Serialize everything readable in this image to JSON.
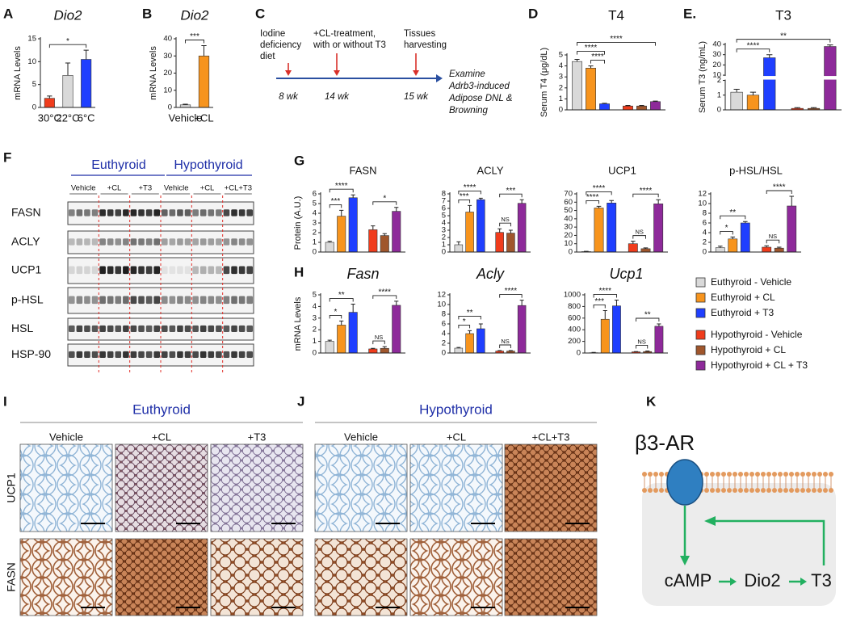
{
  "panel_labels": [
    "A",
    "B",
    "C",
    "D",
    "E.",
    "F",
    "G",
    "H",
    "I",
    "J",
    "K"
  ],
  "chart_data": [
    {
      "type": "bar",
      "title": "Dio2",
      "title_italic": true,
      "ylabel": "mRNA Levels",
      "categories": [
        "30°C",
        "22°C",
        "6°C"
      ],
      "values": [
        2,
        7,
        10.5
      ],
      "errors": [
        0.5,
        2.7,
        2
      ],
      "colors": [
        "#f03c1c",
        "#d9d9d9",
        "#1f3fff"
      ],
      "ylim": [
        0,
        15
      ],
      "yticks": [
        0,
        5,
        10,
        15
      ],
      "brackets": [
        {
          "label": "*",
          "bars": [
            0,
            2
          ]
        }
      ]
    },
    {
      "type": "bar",
      "title": "Dio2",
      "title_italic": true,
      "ylabel": "mRNA Levels",
      "categories": [
        "Vehicle",
        "+CL"
      ],
      "values": [
        1.5,
        30
      ],
      "errors": [
        0.4,
        6
      ],
      "colors": [
        "#d9d9d9",
        "#f7941d"
      ],
      "ylim": [
        0,
        40
      ],
      "yticks": [
        0,
        10,
        20,
        30,
        40
      ],
      "brackets": [
        {
          "label": "***",
          "bars": [
            0,
            1
          ]
        }
      ]
    },
    {
      "type": "bar",
      "title": "T4",
      "title_italic": false,
      "ylabel": "Serum T4 (μg/dL)",
      "values": [
        4.4,
        3.8,
        0.55,
        0.35,
        0.35,
        0.75
      ],
      "errors": [
        0.2,
        0.2,
        0.05,
        0.05,
        0.05,
        0.05
      ],
      "ylim": [
        0,
        5
      ],
      "yticks": [
        0,
        1,
        2,
        3,
        4,
        5
      ],
      "brackets": [
        {
          "label": "****",
          "bars": [
            1,
            2
          ]
        },
        {
          "label": "****",
          "bars": [
            0,
            2
          ]
        },
        {
          "label": "****",
          "bars": [
            0,
            5
          ]
        }
      ]
    },
    {
      "type": "bar",
      "title": "T3",
      "title_italic": false,
      "ylabel": "Serum T3 (ng/mL)",
      "values": [
        1.2,
        1.0,
        27,
        0.1,
        0.1,
        38
      ],
      "errors": [
        0.2,
        0.2,
        3,
        0.05,
        0.05,
        1.5
      ],
      "ylim": [
        0,
        40
      ],
      "ybreak": [
        2,
        10
      ],
      "yticks": [
        0,
        1,
        2,
        10,
        20,
        30,
        40
      ],
      "brackets": [
        {
          "label": "****",
          "bars": [
            0,
            2
          ]
        },
        {
          "label": "**",
          "bars": [
            0,
            5
          ]
        }
      ]
    },
    {
      "type": "bar",
      "title": "FASN",
      "title_italic": false,
      "ylabel": "Protein (A.U.)",
      "values": [
        1.0,
        3.7,
        5.6,
        2.3,
        1.7,
        4.2
      ],
      "errors": [
        0.1,
        0.6,
        0.3,
        0.4,
        0.2,
        0.4
      ],
      "ylim": [
        0,
        6
      ],
      "yticks": [
        0,
        1,
        2,
        3,
        4,
        5,
        6
      ],
      "brackets": [
        {
          "label": "***",
          "bars": [
            0,
            1
          ]
        },
        {
          "label": "****",
          "bars": [
            0,
            2
          ]
        },
        {
          "label": "*",
          "bars": [
            3,
            5
          ]
        }
      ]
    },
    {
      "type": "bar",
      "title": "ACLY",
      "title_italic": false,
      "values": [
        1.0,
        5.5,
        7.2,
        2.7,
        2.6,
        6.7
      ],
      "errors": [
        0.4,
        0.9,
        0.2,
        0.5,
        0.4,
        0.5
      ],
      "ylim": [
        0,
        8
      ],
      "yticks": [
        0,
        1,
        2,
        3,
        4,
        5,
        6,
        7,
        8
      ],
      "brackets": [
        {
          "label": "***",
          "bars": [
            0,
            1
          ]
        },
        {
          "label": "****",
          "bars": [
            0,
            2
          ]
        },
        {
          "label": "NS",
          "bars": [
            3,
            4
          ]
        },
        {
          "label": "***",
          "bars": [
            3,
            5
          ]
        }
      ]
    },
    {
      "type": "bar",
      "title": "UCP1",
      "title_italic": false,
      "values": [
        0.5,
        53,
        59,
        10,
        4,
        58
      ],
      "errors": [
        0.3,
        2,
        3,
        3,
        1,
        5
      ],
      "ylim": [
        0,
        70
      ],
      "yticks": [
        0,
        10,
        20,
        30,
        40,
        50,
        60,
        70
      ],
      "brackets": [
        {
          "label": "****",
          "bars": [
            0,
            1
          ]
        },
        {
          "label": "****",
          "bars": [
            0,
            2
          ]
        },
        {
          "label": "NS",
          "bars": [
            3,
            4
          ]
        },
        {
          "label": "****",
          "bars": [
            3,
            5
          ]
        }
      ]
    },
    {
      "type": "bar",
      "title": "p-HSL/HSL",
      "title_italic": false,
      "values": [
        0.9,
        2.7,
        6.0,
        1.0,
        0.8,
        9.5
      ],
      "errors": [
        0.3,
        0.4,
        0.3,
        0.3,
        0.2,
        2
      ],
      "ylim": [
        0,
        12
      ],
      "yticks": [
        0,
        2,
        4,
        6,
        8,
        10,
        12
      ],
      "brackets": [
        {
          "label": "*",
          "bars": [
            0,
            1
          ]
        },
        {
          "label": "**",
          "bars": [
            0,
            2
          ]
        },
        {
          "label": "NS",
          "bars": [
            3,
            4
          ]
        },
        {
          "label": "****",
          "bars": [
            3,
            5
          ]
        }
      ]
    },
    {
      "type": "bar",
      "title": "Fasn",
      "title_italic": true,
      "ylabel": "mRNA Levels",
      "values": [
        1.0,
        2.4,
        3.5,
        0.35,
        0.4,
        4.1
      ],
      "errors": [
        0.1,
        0.35,
        0.7,
        0.05,
        0.15,
        0.35
      ],
      "ylim": [
        0,
        5
      ],
      "yticks": [
        0,
        1,
        2,
        3,
        4,
        5
      ],
      "brackets": [
        {
          "label": "*",
          "bars": [
            0,
            1
          ]
        },
        {
          "label": "**",
          "bars": [
            0,
            2
          ]
        },
        {
          "label": "NS",
          "bars": [
            3,
            4
          ]
        },
        {
          "label": "****",
          "bars": [
            3,
            5
          ]
        }
      ]
    },
    {
      "type": "bar",
      "title": "Acly",
      "title_italic": true,
      "values": [
        1.0,
        4.0,
        5.0,
        0.4,
        0.4,
        9.8
      ],
      "errors": [
        0.15,
        0.6,
        1.0,
        0.1,
        0.1,
        1.1
      ],
      "ylim": [
        0,
        12
      ],
      "yticks": [
        0,
        2,
        4,
        6,
        8,
        10,
        12
      ],
      "brackets": [
        {
          "label": "*",
          "bars": [
            0,
            1
          ]
        },
        {
          "label": "**",
          "bars": [
            0,
            2
          ]
        },
        {
          "label": "NS",
          "bars": [
            3,
            4
          ]
        },
        {
          "label": "****",
          "bars": [
            3,
            5
          ]
        }
      ]
    },
    {
      "type": "bar",
      "title": "Ucp1",
      "title_italic": true,
      "values": [
        5,
        580,
        810,
        20,
        25,
        460
      ],
      "errors": [
        5,
        150,
        100,
        5,
        10,
        40
      ],
      "ylim": [
        0,
        1000
      ],
      "yticks": [
        0,
        200,
        400,
        600,
        800,
        1000
      ],
      "brackets": [
        {
          "label": "***",
          "bars": [
            0,
            1
          ]
        },
        {
          "label": "****",
          "bars": [
            0,
            2
          ]
        },
        {
          "label": "NS",
          "bars": [
            3,
            4
          ]
        },
        {
          "label": "**",
          "bars": [
            3,
            5
          ]
        }
      ]
    }
  ],
  "legend": {
    "items": [
      {
        "name": "Euthyroid - Vehicle",
        "color": "#d9d9d9"
      },
      {
        "name": "Euthyroid + CL",
        "color": "#f7941d"
      },
      {
        "name": "Euthyroid + T3",
        "color": "#1f3fff"
      },
      {
        "name": "Hypothyroid - Vehicle",
        "color": "#f03c1c"
      },
      {
        "name": "Hypothyroid + CL",
        "color": "#a0562c"
      },
      {
        "name": "Hypothyroid + CL + T3",
        "color": "#8e2a9a"
      }
    ]
  },
  "timeline": {
    "events": [
      {
        "lines": [
          "Iodine",
          "deficiency",
          "diet"
        ],
        "time": "8 wk"
      },
      {
        "lines": [
          "+CL-treatment,",
          "with or without T3"
        ],
        "time": "14 wk"
      },
      {
        "lines": [
          "Tissues",
          "harvesting"
        ],
        "time": "15 wk"
      }
    ],
    "outcome_lines": [
      "Examine",
      "Adrb3-induced",
      "Adipose DNL &",
      "Browning"
    ]
  },
  "western": {
    "groups": [
      "Euthyroid",
      "Hypothyroid"
    ],
    "lanes": [
      "Vehicle",
      "+CL",
      "+T3",
      "Vehicle",
      "+CL",
      "+CL+T3"
    ],
    "rows": [
      "FASN",
      "ACLY",
      "UCP1",
      "p-HSL",
      "HSL",
      "HSP-90"
    ]
  },
  "histology": {
    "panels": [
      {
        "title": "Euthyroid",
        "columns": [
          "Vehicle",
          "+CL",
          "+T3"
        ]
      },
      {
        "title": "Hypothyroid",
        "columns": [
          "Vehicle",
          "+CL",
          "+CL+T3"
        ]
      }
    ],
    "rows": [
      "UCP1",
      "FASN"
    ]
  },
  "diagram": {
    "receptor": "β3-AR",
    "nodes": [
      "cAMP",
      "Dio2",
      "T3"
    ]
  }
}
